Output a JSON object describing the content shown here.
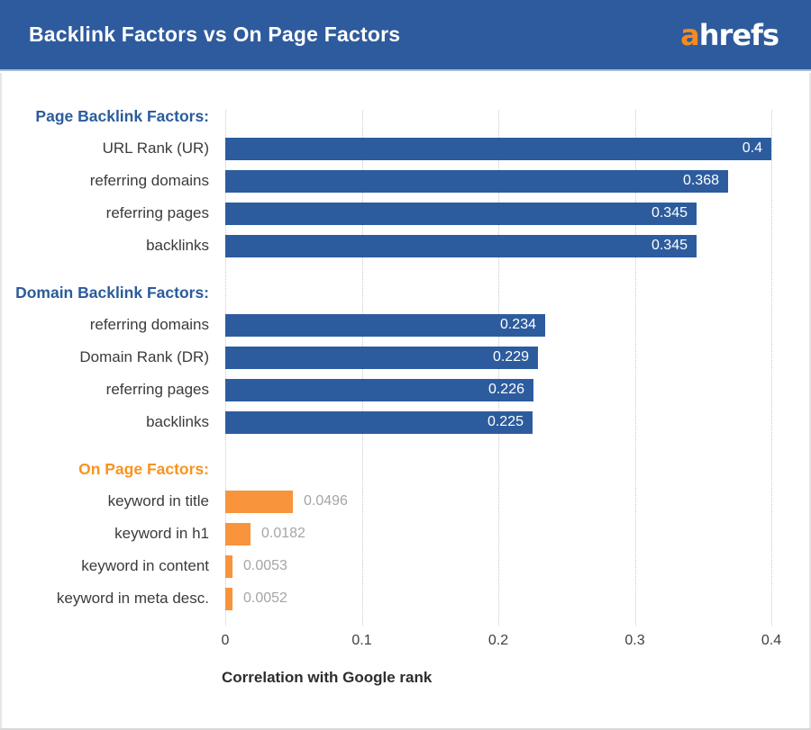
{
  "header": {
    "title": "Backlink Factors vs On Page Factors",
    "logo_prefix": "a",
    "logo_rest": "hrefs"
  },
  "colors": {
    "header_bg": "#2e5b9d",
    "header_border": "#a9bdd9",
    "blue_bar": "#2d5c9e",
    "orange_bar": "#f8943c",
    "blue_heading": "#2b5c9b",
    "orange_heading": "#f7941e",
    "value_inside": "#ffffff",
    "value_outside": "#a5a5a5",
    "label_text": "#3b3b3b",
    "gridline": "#c9c9c9",
    "logo_orange": "#f68a1f"
  },
  "chart_data": {
    "type": "bar",
    "orientation": "horizontal",
    "title": "Backlink Factors vs On Page Factors",
    "xlabel": "Correlation with Google rank",
    "ylabel": "",
    "xlim": [
      0,
      0.4
    ],
    "x_ticks": [
      0,
      0.1,
      0.2,
      0.3,
      0.4
    ],
    "grid": "vertical-dotted",
    "groups": [
      {
        "heading": "Page Backlink Factors:",
        "heading_color": "#2b5c9b",
        "bar_color": "#2d5c9e",
        "value_position": "inside",
        "items": [
          {
            "label": "URL Rank (UR)",
            "value": 0.4
          },
          {
            "label": "referring domains",
            "value": 0.368
          },
          {
            "label": "referring pages",
            "value": 0.345
          },
          {
            "label": "backlinks",
            "value": 0.345
          }
        ]
      },
      {
        "heading": "Domain Backlink Factors:",
        "heading_color": "#2b5c9b",
        "bar_color": "#2d5c9e",
        "value_position": "inside",
        "items": [
          {
            "label": "referring domains",
            "value": 0.234
          },
          {
            "label": "Domain Rank (DR)",
            "value": 0.229
          },
          {
            "label": "referring pages",
            "value": 0.226
          },
          {
            "label": "backlinks",
            "value": 0.225
          }
        ]
      },
      {
        "heading": "On Page Factors:",
        "heading_color": "#f7941e",
        "bar_color": "#f8943c",
        "value_position": "outside",
        "items": [
          {
            "label": "keyword in title",
            "value": 0.0496
          },
          {
            "label": "keyword in h1",
            "value": 0.0182
          },
          {
            "label": "keyword in content",
            "value": 0.0053
          },
          {
            "label": "keyword in meta desc.",
            "value": 0.0052
          }
        ]
      }
    ]
  }
}
